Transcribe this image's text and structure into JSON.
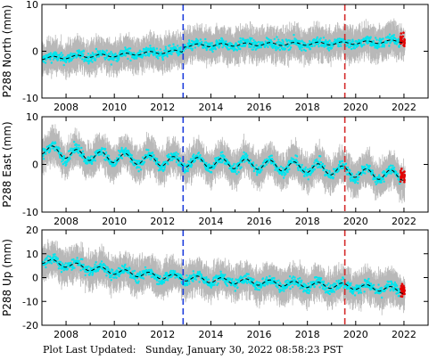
{
  "footer": {
    "label": "Plot Last Updated:",
    "timestamp": "Sunday, January 30, 2022 08:58:23 PST"
  },
  "colors": {
    "errorbar": "#b8b8b8",
    "point": "#00e5ee",
    "recent": "#e00000",
    "trend": "#000000",
    "event1": "#1f3fdd",
    "event2": "#d42a2a"
  },
  "chart_data": [
    {
      "type": "scatter",
      "station": "P288",
      "ylabel": "P288 North (mm)",
      "xlim": [
        2007.0,
        2023.0
      ],
      "ylim": [
        -10,
        10
      ],
      "xticks": [
        2008,
        2010,
        2012,
        2014,
        2016,
        2018,
        2020,
        2022
      ],
      "yticks": [
        -10,
        0,
        10
      ],
      "event_lines": [
        2012.85,
        2019.55
      ],
      "series": [
        {
          "x": [
            2007.0,
            2008.0,
            2009.0,
            2010.0,
            2011.0,
            2012.0,
            2012.8,
            2012.9,
            2014.0,
            2016.0,
            2018.0,
            2019.5,
            2021.0,
            2022.0
          ],
          "y": [
            -1.5,
            -1.3,
            -1.0,
            -0.9,
            -0.5,
            -0.2,
            0.0,
            1.2,
            1.3,
            1.5,
            1.6,
            1.7,
            2.0,
            2.2
          ]
        }
      ]
    },
    {
      "type": "scatter",
      "station": "P288",
      "ylabel": "P288 East (mm)",
      "xlim": [
        2007.0,
        2023.0
      ],
      "ylim": [
        -10,
        10
      ],
      "xticks": [
        2008,
        2010,
        2012,
        2014,
        2016,
        2018,
        2020,
        2022
      ],
      "yticks": [
        -10,
        0,
        10
      ],
      "event_lines": [
        2012.85,
        2019.55
      ],
      "series": [
        {
          "x": [
            2007.0,
            2008.0,
            2010.0,
            2012.0,
            2014.0,
            2016.0,
            2018.0,
            2019.5,
            2020.5,
            2022.0
          ],
          "y": [
            3.2,
            2.3,
            1.4,
            0.7,
            0.3,
            0.0,
            -0.7,
            -1.4,
            -2.0,
            -2.3
          ]
        }
      ]
    },
    {
      "type": "scatter",
      "station": "P288",
      "ylabel": "P288 Up (mm)",
      "xlim": [
        2007.0,
        2023.0
      ],
      "ylim": [
        -20,
        20
      ],
      "xticks": [
        2008,
        2010,
        2012,
        2014,
        2016,
        2018,
        2020,
        2022
      ],
      "yticks": [
        -20,
        -10,
        0,
        10,
        20
      ],
      "event_lines": [
        2012.85,
        2019.55
      ],
      "series": [
        {
          "x": [
            2007.0,
            2008.0,
            2010.0,
            2012.0,
            2014.0,
            2016.0,
            2018.0,
            2019.5,
            2021.0,
            2022.0
          ],
          "y": [
            7.0,
            5.5,
            2.5,
            0.5,
            -1.0,
            -2.0,
            -3.0,
            -3.5,
            -4.5,
            -5.5
          ]
        }
      ]
    }
  ]
}
